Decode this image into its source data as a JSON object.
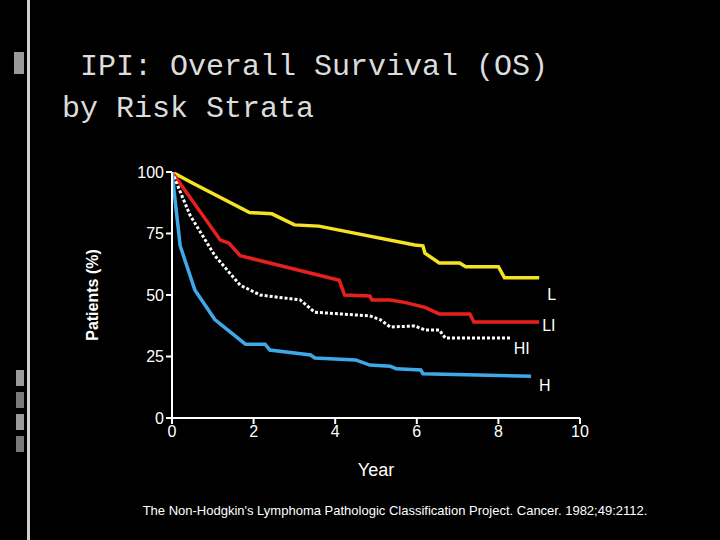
{
  "chart_data": {
    "type": "line",
    "title": "IPI: Overall Survival (OS) by Risk Strata",
    "x_label": "Year",
    "y_label": "Patients (%)",
    "source": "The Non-Hodgkin's Lymphoma Pathologic Classification Project. Cancer. 1982;49:2112.",
    "xlim": [
      0,
      10
    ],
    "xticks": [
      0,
      2,
      4,
      6,
      8,
      10
    ],
    "ylim": [
      0,
      100
    ],
    "yticks": [
      0,
      25,
      50,
      75,
      100
    ],
    "grid": false,
    "series": [
      {
        "name": "L",
        "color": "#f5e323",
        "line_style": "solid",
        "x": [
          0,
          0.5,
          1.9,
          2.45,
          3,
          3.6,
          5.95,
          6.15,
          6.2,
          6.55,
          7.05,
          7.2,
          8.0,
          8.15,
          9.0
        ],
        "values": [
          100,
          95.5,
          83.5,
          83,
          78.5,
          78,
          70.3,
          70,
          67,
          63,
          63,
          61.5,
          61.5,
          57,
          57
        ]
      },
      {
        "name": "LI",
        "color": "#e8201c",
        "line_style": "solid",
        "x": [
          0,
          1.18,
          1.4,
          1.67,
          4.1,
          4.23,
          4.85,
          4.9,
          5.35,
          5.7,
          6.2,
          6.55,
          7.3,
          7.4,
          9.0
        ],
        "values": [
          100,
          72.4,
          71,
          66,
          56,
          50,
          49.6,
          48,
          48,
          47,
          45,
          42.3,
          42.3,
          39,
          39
        ]
      },
      {
        "name": "HI",
        "color": "#ffffff",
        "line_style": "dotted",
        "x": [
          0,
          0.44,
          1.05,
          1.67,
          2.16,
          3.14,
          3.5,
          4.85,
          5.1,
          5.35,
          5.95,
          6.2,
          6.55,
          6.7,
          8.3
        ],
        "values": [
          100,
          82.5,
          66,
          54,
          50,
          48,
          43,
          41.5,
          40,
          37,
          37.4,
          35.8,
          35.8,
          32.5,
          32.5
        ]
      },
      {
        "name": "H",
        "color": "#3fa9e8",
        "line_style": "solid",
        "x": [
          0,
          0.2,
          0.56,
          1.05,
          1.8,
          2.28,
          2.4,
          3.4,
          3.5,
          4.5,
          4.85,
          5.35,
          5.5,
          6.1,
          6.15,
          8.8
        ],
        "values": [
          100,
          70,
          52,
          40,
          30,
          30,
          27.6,
          25.6,
          24.4,
          23.6,
          21.5,
          21,
          20,
          19.5,
          18,
          17
        ]
      }
    ]
  }
}
